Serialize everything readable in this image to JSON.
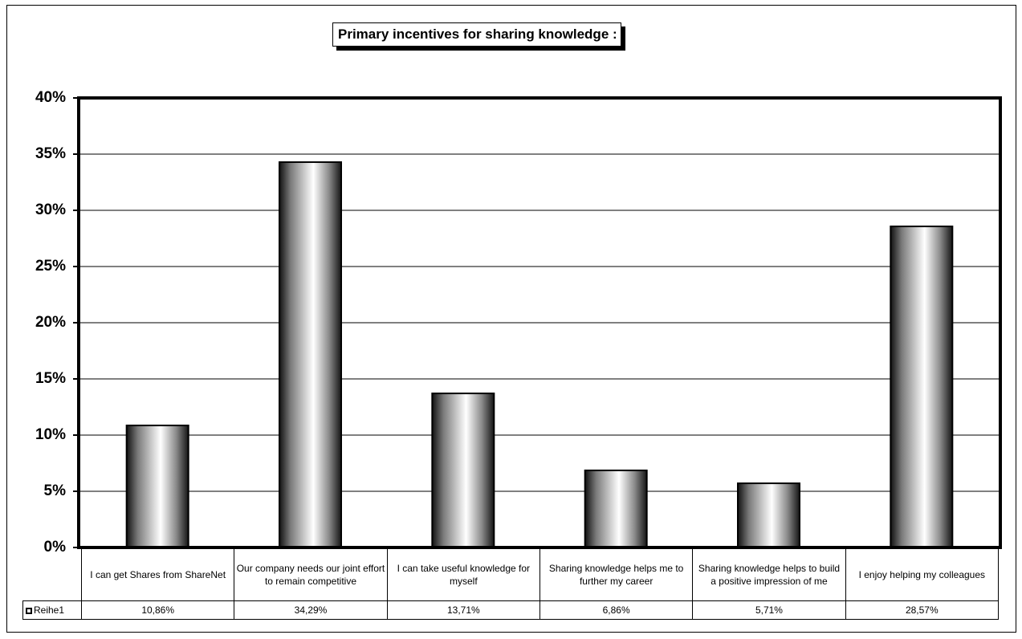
{
  "chart_data": {
    "type": "bar",
    "title": "Primary incentives for sharing knowledge :",
    "categories": [
      "I can get Shares from ShareNet",
      "Our company needs our joint effort to remain competitive",
      "I can take useful knowledge for myself",
      "Sharing knowledge helps me to further my career",
      "Sharing knowledge helps to build a positive impression of me",
      "I enjoy helping my colleagues"
    ],
    "series": [
      {
        "name": "Reihe1",
        "values": [
          10.86,
          34.29,
          13.71,
          6.86,
          5.71,
          28.57
        ]
      }
    ],
    "value_labels": [
      "10,86%",
      "34,29%",
      "13,71%",
      "6,86%",
      "5,71%",
      "28,57%"
    ],
    "yticks": [
      "0%",
      "5%",
      "10%",
      "15%",
      "20%",
      "25%",
      "30%",
      "35%",
      "40%"
    ],
    "ylim": [
      0,
      40
    ],
    "ytick_step": 5,
    "grid": true,
    "legend": "data-table"
  }
}
